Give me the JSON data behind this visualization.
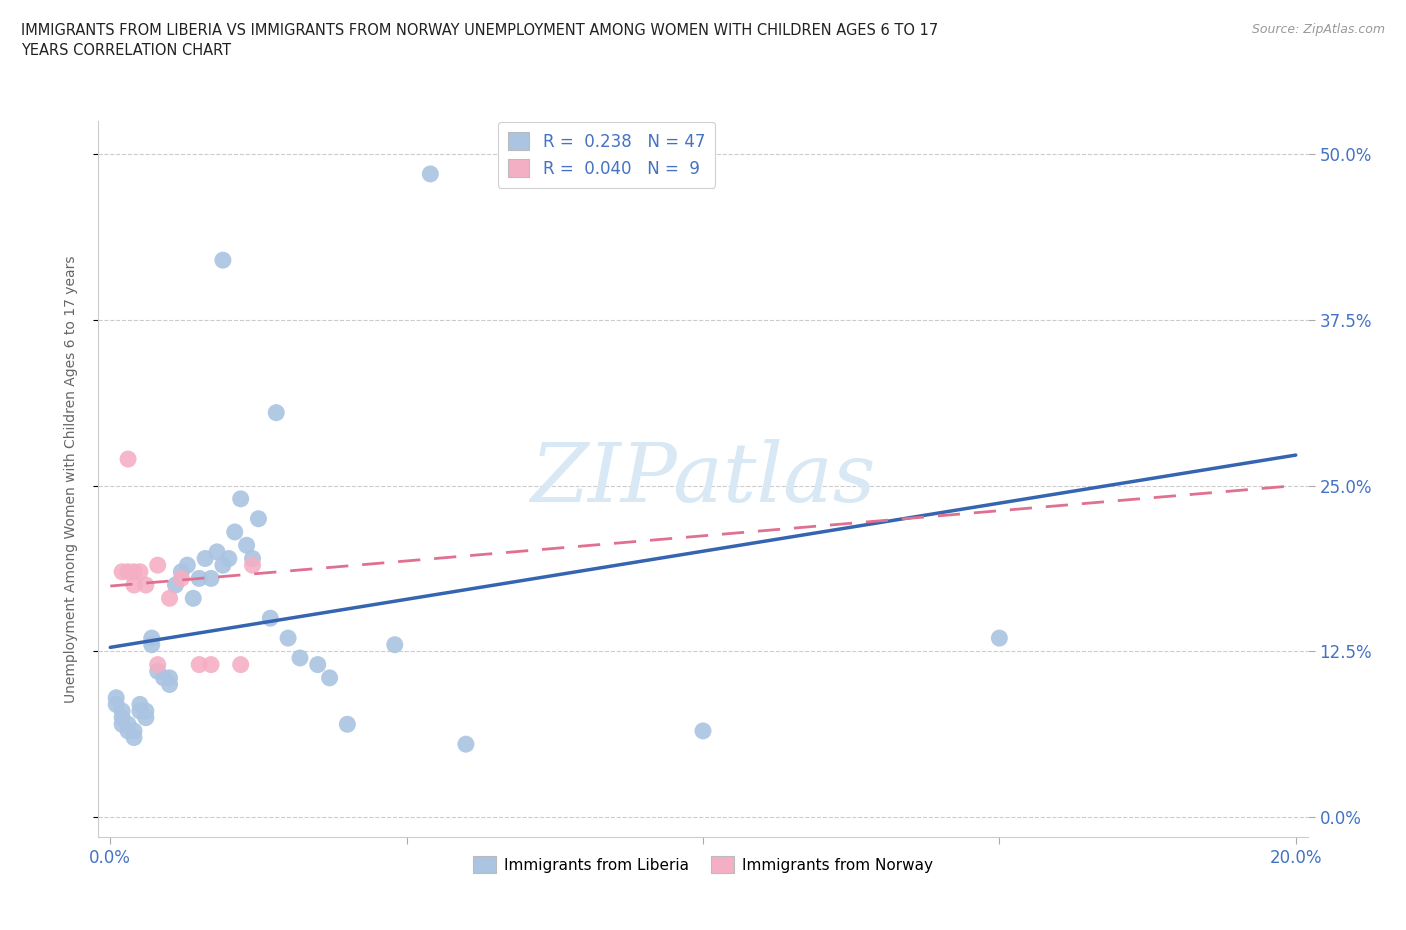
{
  "title": "IMMIGRANTS FROM LIBERIA VS IMMIGRANTS FROM NORWAY UNEMPLOYMENT AMONG WOMEN WITH CHILDREN AGES 6 TO 17\nYEARS CORRELATION CHART",
  "source": "Source: ZipAtlas.com",
  "ylabel": "Unemployment Among Women with Children Ages 6 to 17 years",
  "xlim": [
    0.0,
    0.2
  ],
  "ylim": [
    0.0,
    0.52
  ],
  "yticks": [
    0.0,
    0.125,
    0.25,
    0.375,
    0.5
  ],
  "ytick_labels": [
    "0.0%",
    "12.5%",
    "25.0%",
    "37.5%",
    "50.0%"
  ],
  "xticks": [
    0.0,
    0.05,
    0.1,
    0.15,
    0.2
  ],
  "xtick_labels": [
    "0.0%",
    "",
    "",
    "",
    "20.0%"
  ],
  "liberia_R": 0.238,
  "liberia_N": 47,
  "norway_R": 0.04,
  "norway_N": 9,
  "liberia_color": "#aac4e2",
  "liberia_line_color": "#3565b0",
  "norway_color": "#f4afc4",
  "norway_line_color": "#e07090",
  "watermark_color": "#d8e8f4",
  "background_color": "#ffffff",
  "liberia_x": [
    0.054,
    0.019,
    0.028,
    0.001,
    0.001,
    0.002,
    0.002,
    0.002,
    0.003,
    0.003,
    0.004,
    0.004,
    0.005,
    0.005,
    0.006,
    0.006,
    0.007,
    0.007,
    0.008,
    0.009,
    0.01,
    0.01,
    0.011,
    0.012,
    0.013,
    0.014,
    0.015,
    0.016,
    0.017,
    0.018,
    0.019,
    0.02,
    0.021,
    0.022,
    0.023,
    0.024,
    0.025,
    0.027,
    0.03,
    0.032,
    0.035,
    0.037,
    0.04,
    0.048,
    0.15,
    0.1,
    0.06
  ],
  "liberia_y": [
    0.485,
    0.42,
    0.305,
    0.085,
    0.09,
    0.07,
    0.075,
    0.08,
    0.065,
    0.07,
    0.06,
    0.065,
    0.08,
    0.085,
    0.075,
    0.08,
    0.13,
    0.135,
    0.11,
    0.105,
    0.1,
    0.105,
    0.175,
    0.185,
    0.19,
    0.165,
    0.18,
    0.195,
    0.18,
    0.2,
    0.19,
    0.195,
    0.215,
    0.24,
    0.205,
    0.195,
    0.225,
    0.15,
    0.135,
    0.12,
    0.115,
    0.105,
    0.07,
    0.13,
    0.135,
    0.065,
    0.055
  ],
  "norway_x": [
    0.002,
    0.004,
    0.006,
    0.008,
    0.01,
    0.012,
    0.015,
    0.017,
    0.024
  ],
  "norway_y": [
    0.185,
    0.175,
    0.175,
    0.19,
    0.165,
    0.18,
    0.115,
    0.115,
    0.19
  ],
  "norway_extra_x": [
    0.003,
    0.003,
    0.004,
    0.005,
    0.008,
    0.022
  ],
  "norway_extra_y": [
    0.27,
    0.185,
    0.185,
    0.185,
    0.115,
    0.115
  ]
}
